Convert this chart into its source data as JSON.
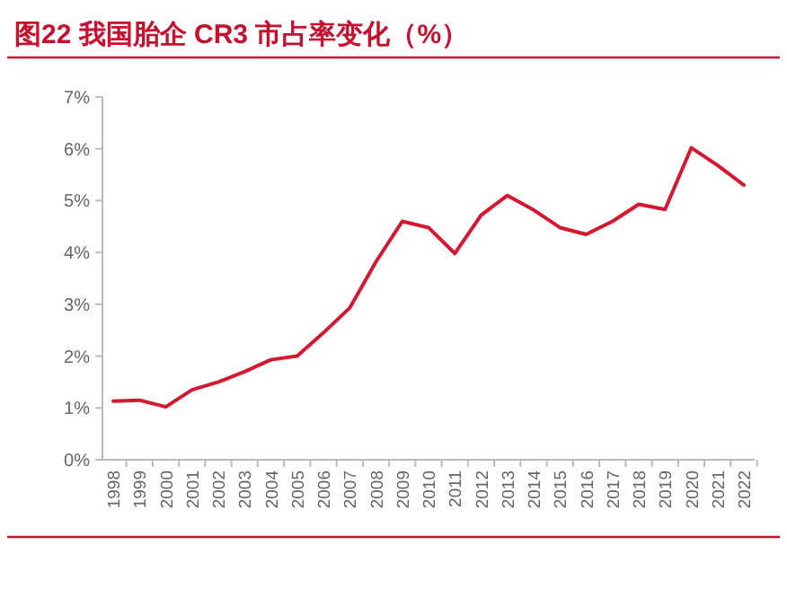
{
  "chart_data": {
    "type": "line",
    "title": "图22  我国胎企 CR3 市占率变化（%）",
    "categories": [
      "1998",
      "1999",
      "2000",
      "2001",
      "2002",
      "2003",
      "2004",
      "2005",
      "2006",
      "2007",
      "2008",
      "2009",
      "2010",
      "2011",
      "2012",
      "2013",
      "2014",
      "2015",
      "2016",
      "2017",
      "2018",
      "2019",
      "2020",
      "2021",
      "2022"
    ],
    "series": [
      {
        "color": "#d7172f",
        "values": [
          1.13,
          1.15,
          1.02,
          1.35,
          1.5,
          1.7,
          1.93,
          2.0,
          2.45,
          2.93,
          3.82,
          4.6,
          4.48,
          3.98,
          4.72,
          5.1,
          4.82,
          4.48,
          4.35,
          4.6,
          4.93,
          4.83,
          6.02,
          5.68,
          5.3
        ]
      }
    ],
    "ylim": [
      0,
      7
    ],
    "yticks": [
      {
        "value": 0,
        "label": "0%"
      },
      {
        "value": 1,
        "label": "1%"
      },
      {
        "value": 2,
        "label": "2%"
      },
      {
        "value": 3,
        "label": "3%"
      },
      {
        "value": 4,
        "label": "4%"
      },
      {
        "value": 5,
        "label": "5%"
      },
      {
        "value": 6,
        "label": "6%"
      },
      {
        "value": 7,
        "label": "7%"
      }
    ],
    "marker": "none",
    "line_style": "solid"
  }
}
